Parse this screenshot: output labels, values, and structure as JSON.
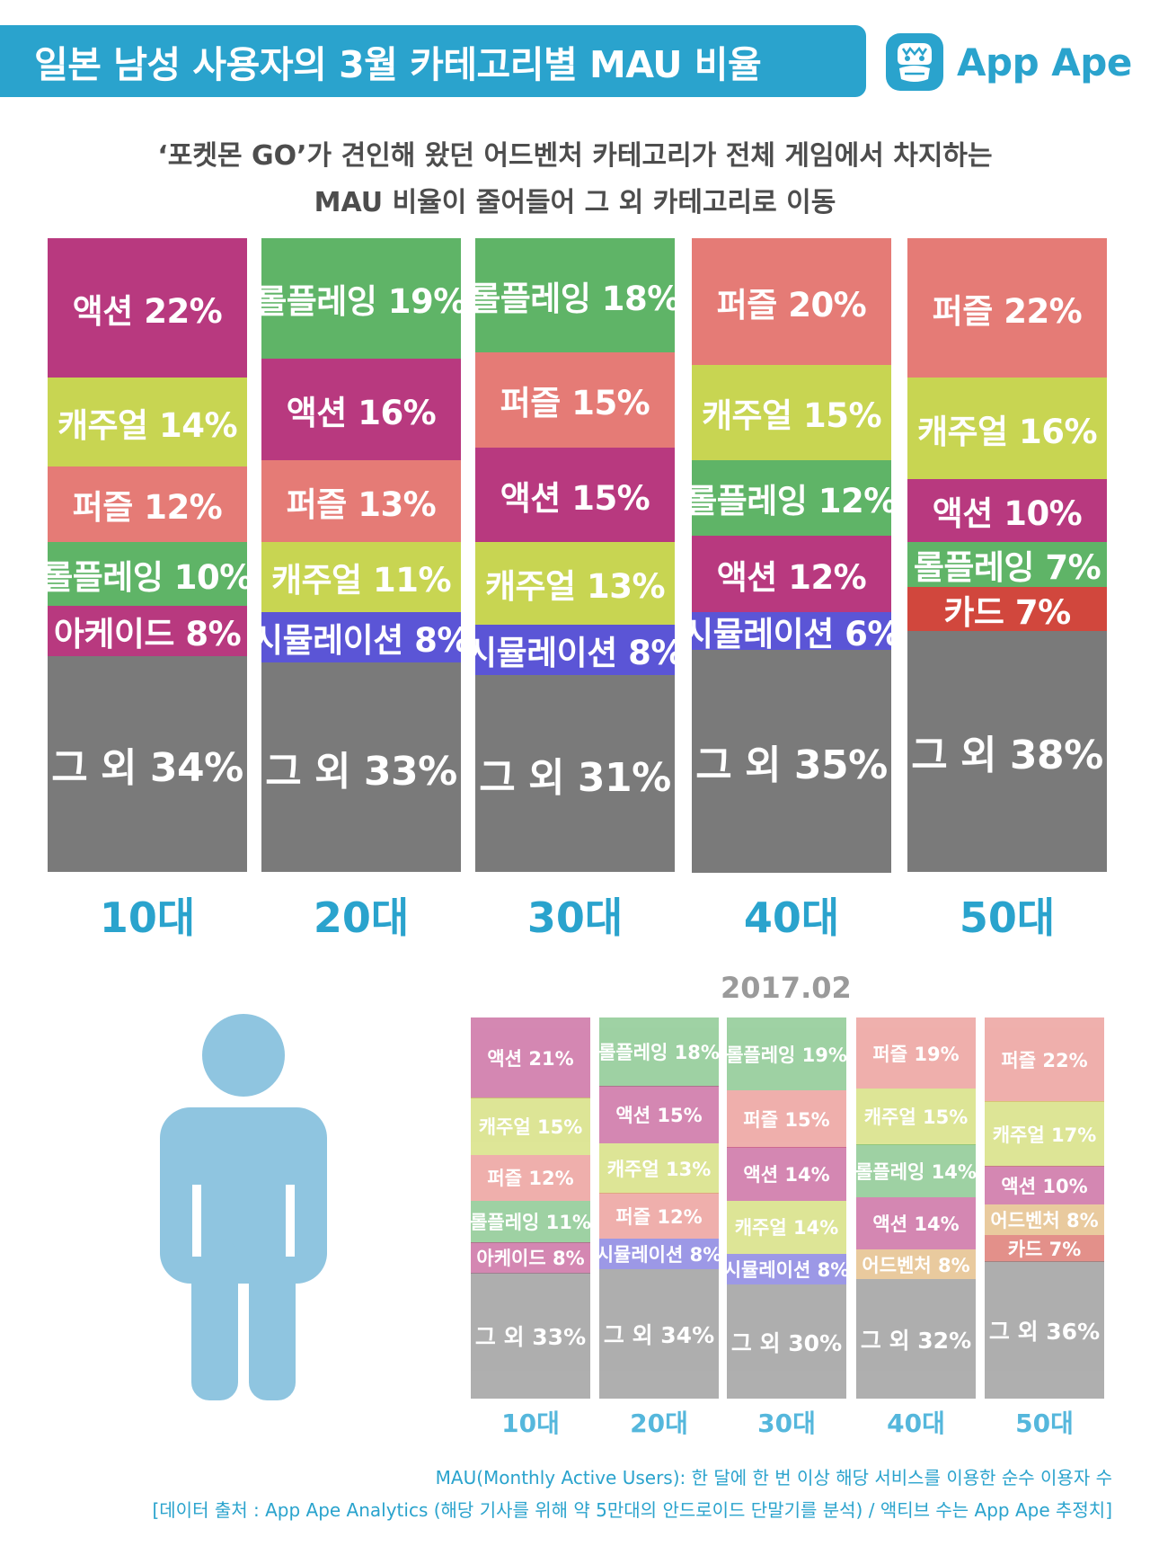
{
  "title": "일본 남성 사용자의 3월 카테고리별 MAU 비율",
  "logo_text": "App Ape",
  "logo_icon": "ape-face-icon",
  "subtitle_lines": [
    "‘포켓몬 GO’가 견인해 왔던 어드벤처 카테고리가 전체 게임에서 차지하는",
    "MAU 비율이 줄어들어 그 외 카테고리로 이동"
  ],
  "colors": {
    "액션": "#b8397f",
    "캐주얼": "#c8d552",
    "퍼즐": "#e57b76",
    "롤플레잉": "#5fb467",
    "아케이드": "#b8397f",
    "시뮬레이션": "#5b55d6",
    "카드": "#d1473d",
    "어드벤처": "#dba85f",
    "그 외": "#7a7a7a",
    "accent": "#2aa3cd",
    "person": "#8fc5e0"
  },
  "chart_data": [
    {
      "type": "bar",
      "stacked": "100%",
      "period": "2017.03",
      "categories": [
        "10대",
        "20대",
        "30대",
        "40대",
        "50대"
      ],
      "stacks": [
        [
          {
            "name": "액션",
            "value": 22,
            "label": "액션 22%"
          },
          {
            "name": "캐주얼",
            "value": 14,
            "label": "캐주얼 14%"
          },
          {
            "name": "퍼즐",
            "value": 12,
            "label": "퍼즐 12%"
          },
          {
            "name": "롤플레잉",
            "value": 10,
            "label": "롤플레잉 10%"
          },
          {
            "name": "아케이드",
            "value": 8,
            "label": "아케이드 8%"
          },
          {
            "name": "그 외",
            "value": 34,
            "label": "그 외 34%"
          }
        ],
        [
          {
            "name": "롤플레잉",
            "value": 19,
            "label": "롤플레잉 19%"
          },
          {
            "name": "액션",
            "value": 16,
            "label": "액션 16%"
          },
          {
            "name": "퍼즐",
            "value": 13,
            "label": "퍼즐 13%"
          },
          {
            "name": "캐주얼",
            "value": 11,
            "label": "캐주얼 11%"
          },
          {
            "name": "시뮬레이션",
            "value": 8,
            "label": "시뮬레이션 8%"
          },
          {
            "name": "그 외",
            "value": 33,
            "label": "그 외 33%"
          }
        ],
        [
          {
            "name": "롤플레잉",
            "value": 18,
            "label": "롤플레잉 18%"
          },
          {
            "name": "퍼즐",
            "value": 15,
            "label": "퍼즐 15%"
          },
          {
            "name": "액션",
            "value": 15,
            "label": "액션 15%"
          },
          {
            "name": "캐주얼",
            "value": 13,
            "label": "캐주얼 13%"
          },
          {
            "name": "시뮬레이션",
            "value": 8,
            "label": "시뮬레이션 8%"
          },
          {
            "name": "그 외",
            "value": 31,
            "label": "그 외 31%"
          }
        ],
        [
          {
            "name": "퍼즐",
            "value": 20,
            "label": "퍼즐 20%"
          },
          {
            "name": "캐주얼",
            "value": 15,
            "label": "캐주얼 15%"
          },
          {
            "name": "롤플레잉",
            "value": 12,
            "label": "롤플레잉 12%"
          },
          {
            "name": "액션",
            "value": 12,
            "label": "액션 12%"
          },
          {
            "name": "시뮬레이션",
            "value": 6,
            "label": "시뮬레이션 6%"
          },
          {
            "name": "그 외",
            "value": 35,
            "label": "그 외 35%"
          }
        ],
        [
          {
            "name": "퍼즐",
            "value": 22,
            "label": "퍼즐 22%"
          },
          {
            "name": "캐주얼",
            "value": 16,
            "label": "캐주얼 16%"
          },
          {
            "name": "액션",
            "value": 10,
            "label": "액션 10%"
          },
          {
            "name": "롤플레잉",
            "value": 7,
            "label": "롤플레잉 7%"
          },
          {
            "name": "카드",
            "value": 7,
            "label": "카드 7%"
          },
          {
            "name": "그 외",
            "value": 38,
            "label": "그 외 38%"
          }
        ]
      ]
    },
    {
      "type": "bar",
      "stacked": "100%",
      "title": "2017.02",
      "categories": [
        "10대",
        "20대",
        "30대",
        "40대",
        "50대"
      ],
      "stacks": [
        [
          {
            "name": "액션",
            "value": 21,
            "label": "액션 21%"
          },
          {
            "name": "캐주얼",
            "value": 15,
            "label": "캐주얼 15%"
          },
          {
            "name": "퍼즐",
            "value": 12,
            "label": "퍼즐 12%"
          },
          {
            "name": "롤플레잉",
            "value": 11,
            "label": "롤플레잉 11%"
          },
          {
            "name": "아케이드",
            "value": 8,
            "label": "아케이드 8%"
          },
          {
            "name": "그 외",
            "value": 33,
            "label": "그 외 33%"
          }
        ],
        [
          {
            "name": "롤플레잉",
            "value": 18,
            "label": "롤플레잉 18%"
          },
          {
            "name": "액션",
            "value": 15,
            "label": "액션 15%"
          },
          {
            "name": "캐주얼",
            "value": 13,
            "label": "캐주얼 13%"
          },
          {
            "name": "퍼즐",
            "value": 12,
            "label": "퍼즐 12%"
          },
          {
            "name": "시뮬레이션",
            "value": 8,
            "label": "시뮬레이션 8%"
          },
          {
            "name": "그 외",
            "value": 34,
            "label": "그 외 34%"
          }
        ],
        [
          {
            "name": "롤플레잉",
            "value": 19,
            "label": "롤플레잉 19%"
          },
          {
            "name": "퍼즐",
            "value": 15,
            "label": "퍼즐 15%"
          },
          {
            "name": "액션",
            "value": 14,
            "label": "액션 14%"
          },
          {
            "name": "캐주얼",
            "value": 14,
            "label": "캐주얼 14%"
          },
          {
            "name": "시뮬레이션",
            "value": 8,
            "label": "시뮬레이션 8%"
          },
          {
            "name": "그 외",
            "value": 30,
            "label": "그 외 30%"
          }
        ],
        [
          {
            "name": "퍼즐",
            "value": 19,
            "label": "퍼즐 19%"
          },
          {
            "name": "캐주얼",
            "value": 15,
            "label": "캐주얼 15%"
          },
          {
            "name": "롤플레잉",
            "value": 14,
            "label": "롤플레잉 14%"
          },
          {
            "name": "액션",
            "value": 14,
            "label": "액션 14%"
          },
          {
            "name": "어드벤처",
            "value": 8,
            "label": "어드벤처 8%"
          },
          {
            "name": "그 외",
            "value": 32,
            "label": "그 외 32%"
          }
        ],
        [
          {
            "name": "퍼즐",
            "value": 22,
            "label": "퍼즐 22%"
          },
          {
            "name": "캐주얼",
            "value": 17,
            "label": "캐주얼 17%"
          },
          {
            "name": "액션",
            "value": 10,
            "label": "액션 10%"
          },
          {
            "name": "어드벤처",
            "value": 8,
            "label": "어드벤처 8%"
          },
          {
            "name": "카드",
            "value": 7,
            "label": "카드 7%"
          },
          {
            "name": "그 외",
            "value": 36,
            "label": "그 외 36%"
          }
        ]
      ]
    }
  ],
  "footnotes": [
    "MAU(Monthly Active Users): 한 달에 한 번 이상 해당 서비스를 이용한 순수 이용자 수",
    "[데이터 출처 : App Ape Analytics (해당 기사를 위해 약 5만대의 안드로이드 단말기를 분석) / 액티브 수는 App Ape 추정치]"
  ]
}
